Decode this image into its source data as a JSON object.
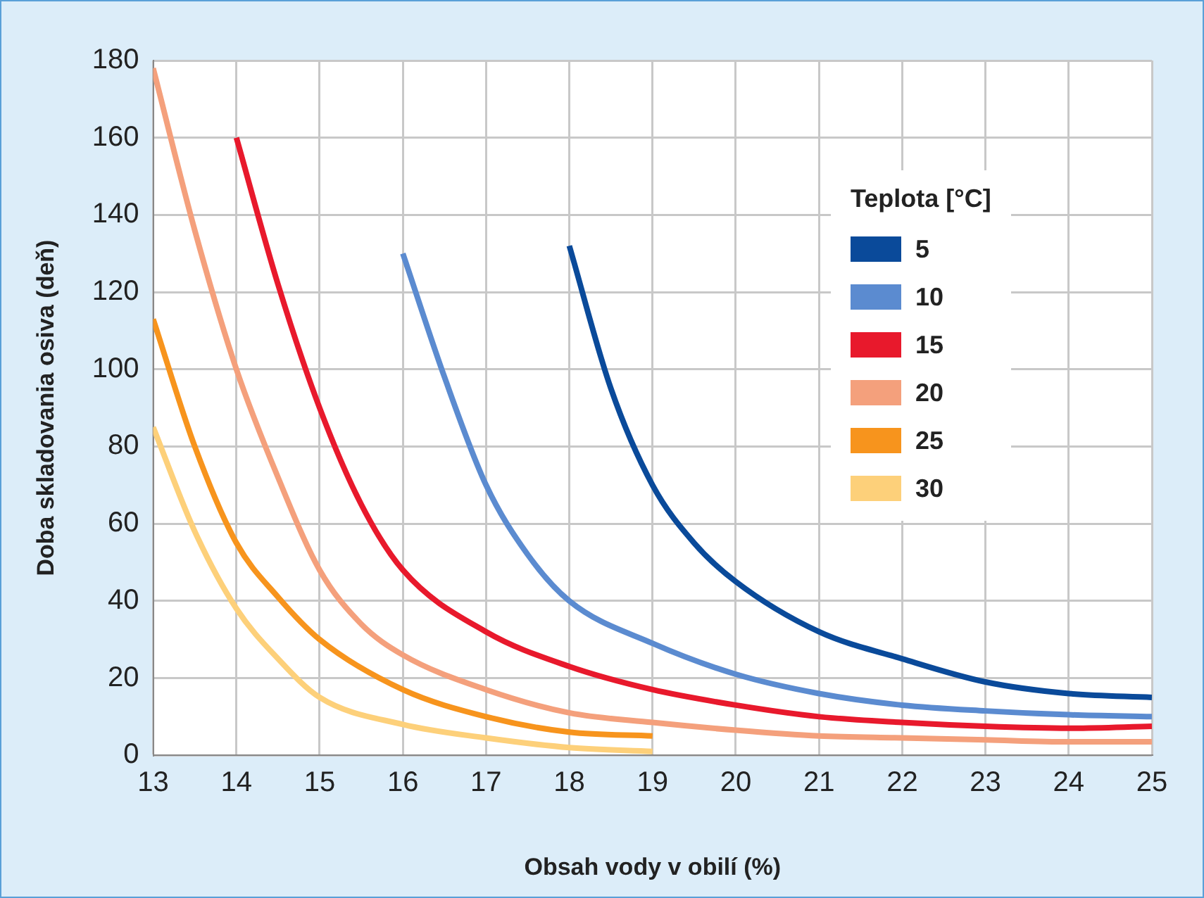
{
  "chart_data": {
    "type": "line",
    "xlabel": "Obsah vody v obilí (%)",
    "ylabel": "Doba skladovania osiva (deň)",
    "legend_title": "Teplota [°C]",
    "legend": "top right",
    "grid": true,
    "marker": "none",
    "line_style": "solid",
    "xlim": [
      13,
      25
    ],
    "xticks": [
      13,
      14,
      15,
      16,
      17,
      18,
      19,
      20,
      21,
      22,
      23,
      24,
      25
    ],
    "ylim": [
      0,
      180
    ],
    "yticks": [
      0,
      20,
      40,
      60,
      80,
      100,
      120,
      140,
      160,
      180
    ],
    "series": [
      {
        "name": "5",
        "color": "#0a4a9a",
        "x": [
          18,
          18.5,
          19,
          19.5,
          20,
          21,
          22,
          23,
          24,
          25
        ],
        "values": [
          132,
          95,
          70,
          55,
          45,
          32,
          25,
          19,
          16,
          15
        ]
      },
      {
        "name": "10",
        "color": "#5b8bd0",
        "x": [
          16,
          16.5,
          17,
          17.5,
          18,
          19,
          20,
          21,
          22,
          23,
          24,
          25
        ],
        "values": [
          130,
          98,
          70,
          52,
          40,
          29,
          21,
          16,
          13,
          11.5,
          10.5,
          10
        ]
      },
      {
        "name": "15",
        "color": "#e8192c",
        "x": [
          14,
          14.5,
          15,
          15.5,
          16,
          17,
          18,
          19,
          20,
          21,
          22,
          23,
          24,
          25
        ],
        "values": [
          160,
          122,
          90,
          65,
          48,
          32,
          23,
          17,
          13,
          10,
          8.5,
          7.5,
          7,
          7.5
        ]
      },
      {
        "name": "20",
        "color": "#f4a07c",
        "x": [
          13,
          13.5,
          14,
          14.5,
          15,
          15.5,
          16,
          17,
          18,
          19,
          20,
          21,
          22,
          23,
          24,
          25
        ],
        "values": [
          178,
          136,
          100,
          72,
          48,
          34,
          26,
          17,
          11,
          8.5,
          6.5,
          5,
          4.5,
          4,
          3.5,
          3.5
        ]
      },
      {
        "name": "25",
        "color": "#f7941d",
        "x": [
          13,
          13.5,
          14,
          14.5,
          15,
          16,
          17,
          18,
          19
        ],
        "values": [
          113,
          80,
          55,
          41,
          30,
          17,
          10,
          6,
          5
        ]
      },
      {
        "name": "30",
        "color": "#fdd07a",
        "x": [
          13,
          13.5,
          14,
          14.5,
          15,
          16,
          17,
          18,
          19
        ],
        "values": [
          85,
          58,
          38,
          25,
          15,
          8,
          4.5,
          2,
          1
        ]
      }
    ]
  }
}
